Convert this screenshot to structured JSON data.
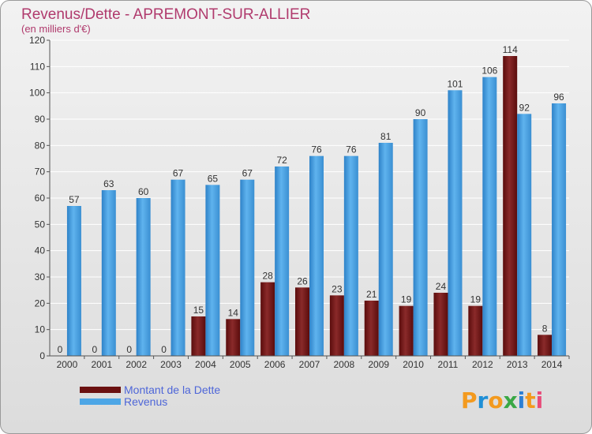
{
  "chart_data": {
    "type": "bar",
    "title": "Revenus/Dette - APREMONT-SUR-ALLIER",
    "subtitle": "(en milliers d'€)",
    "categories": [
      "2000",
      "2001",
      "2002",
      "2003",
      "2004",
      "2005",
      "2006",
      "2007",
      "2008",
      "2009",
      "2010",
      "2011",
      "2012",
      "2013",
      "2014"
    ],
    "series": [
      {
        "name": "Montant de la Dette",
        "color": "#7a1a1a",
        "values": [
          0,
          0,
          0,
          0,
          15,
          14,
          28,
          26,
          23,
          21,
          19,
          24,
          19,
          114,
          8
        ]
      },
      {
        "name": "Revenus",
        "color": "#4da6e6",
        "values": [
          57,
          63,
          60,
          67,
          65,
          67,
          72,
          76,
          76,
          81,
          90,
          101,
          106,
          92,
          96
        ]
      }
    ],
    "ylim": [
      0,
      120
    ],
    "yticks": [
      0,
      10,
      20,
      30,
      40,
      50,
      60,
      70,
      80,
      90,
      100,
      110,
      120
    ],
    "grid": true,
    "legend": "bottom-left"
  },
  "logo": {
    "text": "Proxiti",
    "letters": [
      "P",
      "r",
      "o",
      "x",
      "i",
      "t",
      "i"
    ]
  }
}
